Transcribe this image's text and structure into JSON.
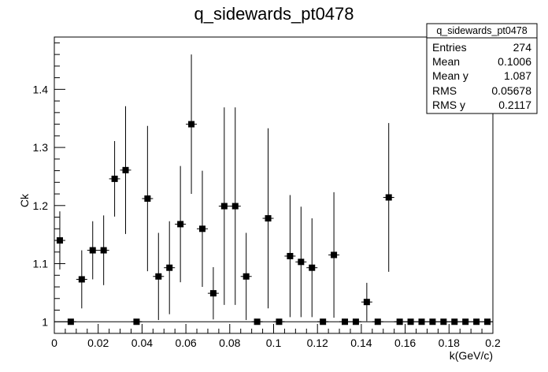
{
  "chart_data": {
    "type": "scatter",
    "title": "q_sidewards_pt0478",
    "xlabel": "k(GeV/c)",
    "ylabel": "Ck",
    "xlim": [
      0,
      0.2
    ],
    "ylim": [
      0.98,
      1.49
    ],
    "x_ticks": [
      "0",
      "0.02",
      "0.04",
      "0.06",
      "0.08",
      "0.1",
      "0.12",
      "0.14",
      "0.16",
      "0.18",
      "0.2"
    ],
    "y_ticks": [
      "1",
      "1.1",
      "1.2",
      "1.3",
      "1.4"
    ],
    "reference_line": 1,
    "grid": false,
    "marker": "filled-square",
    "x": [
      0.0025,
      0.0075,
      0.0125,
      0.0175,
      0.0225,
      0.0275,
      0.0325,
      0.0375,
      0.0425,
      0.0475,
      0.0525,
      0.0575,
      0.0625,
      0.0675,
      0.0725,
      0.0775,
      0.0825,
      0.0875,
      0.0925,
      0.0975,
      0.1025,
      0.1075,
      0.1125,
      0.1175,
      0.1225,
      0.1275,
      0.1325,
      0.1375,
      0.1425,
      0.1475,
      0.1525,
      0.1575,
      0.1625,
      0.1675,
      0.1725,
      0.1775,
      0.1825,
      0.1875,
      0.1925,
      0.1975
    ],
    "y": [
      1.14,
      1.0,
      1.073,
      1.123,
      1.123,
      1.246,
      1.261,
      1.0,
      1.212,
      1.078,
      1.093,
      1.168,
      1.34,
      1.16,
      1.049,
      1.199,
      1.199,
      1.078,
      1.0,
      1.178,
      1.0,
      1.113,
      1.103,
      1.093,
      1.0,
      1.115,
      1.0,
      1.0,
      1.034,
      1.0,
      1.214,
      1.0,
      1.0,
      1.0,
      1.0,
      1.0,
      1.0,
      1.0,
      1.0,
      1.0
    ],
    "y_err": [
      0.05,
      0,
      0.05,
      0.05,
      0.06,
      0.065,
      0.11,
      0,
      0.125,
      0.075,
      0.08,
      0.1,
      0.12,
      0.1,
      0.045,
      0.17,
      0.17,
      0.075,
      0,
      0.155,
      0,
      0.105,
      0.095,
      0.085,
      0,
      0.108,
      0,
      0,
      0.033,
      0,
      0.128,
      0,
      0,
      0,
      0,
      0,
      0,
      0,
      0,
      0
    ],
    "stats_box": {
      "title": "q_sidewards_pt0478",
      "rows": [
        {
          "label": "Entries",
          "value": "274"
        },
        {
          "label": "Mean",
          "value": "0.1006"
        },
        {
          "label": "Mean y",
          "value": "1.087"
        },
        {
          "label": "RMS",
          "value": "0.05678"
        },
        {
          "label": "RMS y",
          "value": "0.2117"
        }
      ]
    }
  }
}
